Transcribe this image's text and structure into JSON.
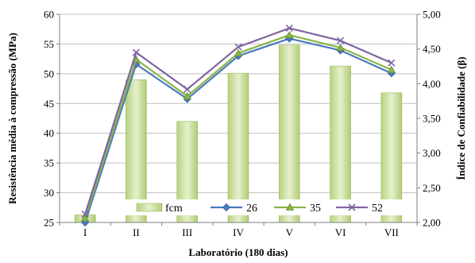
{
  "chart_data": {
    "type": "bar+line",
    "categories": [
      "I",
      "II",
      "III",
      "IV",
      "V",
      "VI",
      "VII"
    ],
    "xlabel": "Laboratório (180 dias)",
    "ylabel_left": "Resistência média à compressão (MPa)",
    "ylabel_right": "Índice de Confiabilidade (β)",
    "ylim_left": [
      25,
      60
    ],
    "yticks_left": [
      "25",
      "30",
      "35",
      "40",
      "45",
      "50",
      "55",
      "60"
    ],
    "ylim_right": [
      2.0,
      5.0
    ],
    "yticks_right": [
      "2,00",
      "2,50",
      "3,00",
      "3,50",
      "4,00",
      "4,50",
      "5,00"
    ],
    "grid": true,
    "legend_position": "bottom-inside",
    "bars": {
      "name": "fcm",
      "values": [
        26.3,
        49.0,
        42.0,
        50.1,
        54.8,
        51.3,
        46.8
      ],
      "color": "#c7dd98"
    },
    "series": [
      {
        "name": "26",
        "axis": "right",
        "values": [
          2.0,
          4.28,
          3.78,
          4.4,
          4.65,
          4.48,
          4.15
        ],
        "color": "#4a7bbf",
        "marker": "diamond"
      },
      {
        "name": "35",
        "axis": "right",
        "values": [
          2.06,
          4.35,
          3.82,
          4.44,
          4.7,
          4.52,
          4.2
        ],
        "color": "#8ab547",
        "marker": "triangle"
      },
      {
        "name": "52",
        "axis": "right",
        "values": [
          2.12,
          4.45,
          3.92,
          4.53,
          4.8,
          4.62,
          4.3
        ],
        "color": "#8064a2",
        "marker": "x"
      }
    ]
  }
}
